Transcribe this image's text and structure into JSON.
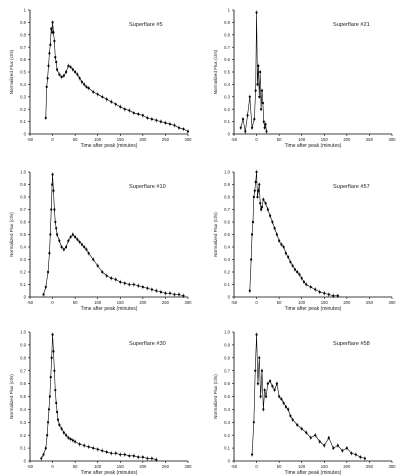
{
  "colors": {
    "marker": "#000000",
    "axis": "#000000",
    "gridless": "none"
  },
  "chart_data": [
    {
      "type": "scatter",
      "title": "Superflare #5",
      "xlabel": "Time after peak (minutes)",
      "ylabel": "Normalized Flux (ct/s)",
      "xlim": [
        -50,
        300
      ],
      "ylim": [
        0,
        1.0
      ],
      "xticks": [
        -50,
        0,
        50,
        100,
        150,
        200,
        250,
        300
      ],
      "yticks": [
        0,
        0.1,
        0.2,
        0.3,
        0.4,
        0.5,
        0.6,
        0.7,
        0.8,
        0.9,
        1
      ],
      "xtick_labels": [
        "-50",
        "0",
        "50",
        "100",
        "150",
        "200",
        "250",
        "300"
      ],
      "ytick_labels": [
        "0",
        "0.1",
        "0.2",
        "0.3",
        "0.4",
        "0.5",
        "0.6",
        "0.7",
        "0.8",
        "0.9",
        "1"
      ],
      "grid": false,
      "x": [
        -15,
        -13,
        -11,
        -9,
        -7,
        -5,
        -3,
        -1,
        0,
        2,
        4,
        6,
        8,
        10,
        15,
        20,
        25,
        30,
        35,
        40,
        45,
        50,
        55,
        60,
        65,
        70,
        75,
        80,
        90,
        100,
        110,
        120,
        130,
        140,
        150,
        160,
        170,
        180,
        190,
        200,
        210,
        220,
        230,
        240,
        250,
        260,
        270,
        280,
        290,
        300
      ],
      "y": [
        0.13,
        0.38,
        0.45,
        0.55,
        0.65,
        0.72,
        0.85,
        0.82,
        0.9,
        0.82,
        0.75,
        0.62,
        0.58,
        0.52,
        0.48,
        0.46,
        0.47,
        0.5,
        0.55,
        0.54,
        0.52,
        0.5,
        0.48,
        0.45,
        0.42,
        0.4,
        0.38,
        0.37,
        0.34,
        0.32,
        0.3,
        0.28,
        0.26,
        0.24,
        0.22,
        0.2,
        0.19,
        0.17,
        0.16,
        0.15,
        0.13,
        0.12,
        0.11,
        0.1,
        0.09,
        0.08,
        0.07,
        0.05,
        0.04,
        0.02
      ]
    },
    {
      "type": "scatter",
      "title": "Superflare #21",
      "xlabel": "Time after peak (minutes)",
      "ylabel": "Normalized Flux (ct/s)",
      "xlim": [
        -50,
        300
      ],
      "ylim": [
        0,
        1.0
      ],
      "xticks": [
        -50,
        0,
        50,
        100,
        150,
        200,
        250,
        300
      ],
      "yticks": [
        0,
        0.1,
        0.2,
        0.3,
        0.4,
        0.5,
        0.6,
        0.7,
        0.8,
        0.9,
        1
      ],
      "xtick_labels": [
        "-50",
        "0",
        "50",
        "100",
        "150",
        "200",
        "250",
        "300"
      ],
      "ytick_labels": [
        "0",
        "0.1",
        "0.2",
        "0.3",
        "0.4",
        "0.5",
        "0.6",
        "0.7",
        "0.8",
        "0.9",
        "1"
      ],
      "grid": false,
      "x": [
        -35,
        -30,
        -25,
        -20,
        -15,
        -10,
        -5,
        -2,
        0,
        2,
        4,
        6,
        8,
        10,
        12,
        14,
        16,
        18,
        20,
        22
      ],
      "y": [
        0.05,
        0.12,
        0.02,
        0.15,
        0.3,
        0.05,
        0.12,
        0.35,
        0.98,
        0.4,
        0.55,
        0.3,
        0.5,
        0.2,
        0.35,
        0.25,
        0.1,
        0.05,
        0.08,
        0.02
      ]
    },
    {
      "type": "scatter",
      "title": "Superflare #10",
      "xlabel": "Time after peak (minutes)",
      "ylabel": "Normalized Flux (ct/s)",
      "xlim": [
        -50,
        300
      ],
      "ylim": [
        0,
        1.0
      ],
      "xticks": [
        -50,
        0,
        50,
        100,
        150,
        200,
        250,
        300
      ],
      "yticks": [
        0,
        0.1,
        0.2,
        0.3,
        0.4,
        0.5,
        0.6,
        0.7,
        0.8,
        0.9,
        1
      ],
      "xtick_labels": [
        "-50",
        "0",
        "50",
        "100",
        "150",
        "200",
        "250",
        "300"
      ],
      "ytick_labels": [
        "0",
        "0.1",
        "0.2",
        "0.3",
        "0.4",
        "0.5",
        "0.6",
        "0.7",
        "0.8",
        "0.9",
        "1.0"
      ],
      "grid": false,
      "x": [
        -20,
        -15,
        -10,
        -7,
        -5,
        -3,
        -1,
        0,
        2,
        4,
        6,
        8,
        10,
        15,
        20,
        25,
        30,
        35,
        40,
        45,
        50,
        55,
        60,
        65,
        70,
        75,
        80,
        90,
        100,
        110,
        120,
        130,
        140,
        150,
        160,
        170,
        180,
        190,
        200,
        210,
        220,
        230,
        240,
        250,
        260,
        270,
        280,
        290
      ],
      "y": [
        0.02,
        0.08,
        0.2,
        0.35,
        0.5,
        0.7,
        0.9,
        0.98,
        0.85,
        0.7,
        0.6,
        0.55,
        0.5,
        0.45,
        0.4,
        0.38,
        0.4,
        0.45,
        0.48,
        0.5,
        0.48,
        0.46,
        0.44,
        0.42,
        0.4,
        0.38,
        0.35,
        0.3,
        0.25,
        0.2,
        0.17,
        0.15,
        0.14,
        0.12,
        0.11,
        0.1,
        0.1,
        0.09,
        0.08,
        0.07,
        0.06,
        0.05,
        0.04,
        0.03,
        0.03,
        0.02,
        0.02,
        0.01
      ]
    },
    {
      "type": "scatter",
      "title": "Superflare #57",
      "xlabel": "Time after peak (minutes)",
      "ylabel": "Normalized Flux (ct/s)",
      "xlim": [
        -50,
        300
      ],
      "ylim": [
        0,
        1.0
      ],
      "xticks": [
        -50,
        0,
        50,
        100,
        150,
        200,
        250,
        300
      ],
      "yticks": [
        0,
        0.1,
        0.2,
        0.3,
        0.4,
        0.5,
        0.6,
        0.7,
        0.8,
        0.9,
        1
      ],
      "xtick_labels": [
        "-50",
        "0",
        "50",
        "100",
        "150",
        "200",
        "250",
        "300"
      ],
      "ytick_labels": [
        "0",
        "0.1",
        "0.2",
        "0.3",
        "0.4",
        "0.5",
        "0.6",
        "0.7",
        "0.8",
        "0.9",
        "1.0"
      ],
      "grid": false,
      "x": [
        -15,
        -12,
        -10,
        -8,
        -6,
        -4,
        -2,
        0,
        2,
        4,
        6,
        8,
        10,
        12,
        15,
        20,
        25,
        30,
        35,
        40,
        45,
        50,
        55,
        60,
        65,
        70,
        75,
        80,
        85,
        90,
        95,
        100,
        105,
        110,
        120,
        130,
        140,
        150,
        160,
        170,
        180
      ],
      "y": [
        0.05,
        0.3,
        0.5,
        0.6,
        0.8,
        0.85,
        0.92,
        1.0,
        0.8,
        0.85,
        0.9,
        0.75,
        0.7,
        0.72,
        0.78,
        0.75,
        0.7,
        0.65,
        0.6,
        0.55,
        0.5,
        0.45,
        0.42,
        0.4,
        0.35,
        0.32,
        0.28,
        0.25,
        0.22,
        0.2,
        0.18,
        0.15,
        0.12,
        0.1,
        0.08,
        0.06,
        0.04,
        0.03,
        0.02,
        0.01,
        0.01
      ]
    },
    {
      "type": "scatter",
      "title": "Superflare #30",
      "xlabel": "Time after peak (minutes)",
      "ylabel": "Normalized Flux (ct/s)",
      "xlim": [
        -50,
        300
      ],
      "ylim": [
        0,
        1.0
      ],
      "xticks": [
        -50,
        0,
        50,
        100,
        150,
        200,
        250,
        300
      ],
      "yticks": [
        0,
        0.1,
        0.2,
        0.3,
        0.4,
        0.5,
        0.6,
        0.7,
        0.8,
        0.9,
        1
      ],
      "xtick_labels": [
        "-50",
        "0",
        "50",
        "100",
        "150",
        "200",
        "250",
        "300"
      ],
      "ytick_labels": [
        "0",
        "0.1",
        "0.2",
        "0.3",
        "0.4",
        "0.5",
        "0.6",
        "0.7",
        "0.8",
        "0.9",
        "1.0"
      ],
      "grid": false,
      "x": [
        -25,
        -20,
        -15,
        -12,
        -10,
        -8,
        -6,
        -4,
        -2,
        0,
        2,
        4,
        6,
        8,
        10,
        12,
        15,
        20,
        25,
        30,
        35,
        40,
        45,
        50,
        60,
        70,
        80,
        90,
        100,
        110,
        120,
        130,
        140,
        150,
        160,
        170,
        180,
        190,
        200,
        210,
        220,
        230
      ],
      "y": [
        0.02,
        0.05,
        0.1,
        0.2,
        0.3,
        0.4,
        0.5,
        0.65,
        0.8,
        0.98,
        0.85,
        0.7,
        0.55,
        0.45,
        0.38,
        0.32,
        0.28,
        0.25,
        0.22,
        0.2,
        0.18,
        0.17,
        0.16,
        0.15,
        0.13,
        0.12,
        0.11,
        0.1,
        0.09,
        0.08,
        0.07,
        0.06,
        0.06,
        0.05,
        0.05,
        0.04,
        0.04,
        0.03,
        0.03,
        0.02,
        0.02,
        0.01
      ]
    },
    {
      "type": "scatter",
      "title": "Superflare #58",
      "xlabel": "Time after peak (minutes)",
      "ylabel": "Normalized Flux (ct/s)",
      "xlim": [
        -50,
        300
      ],
      "ylim": [
        0,
        1.0
      ],
      "xticks": [
        -50,
        0,
        50,
        100,
        150,
        200,
        250,
        300
      ],
      "yticks": [
        0,
        0.1,
        0.2,
        0.3,
        0.4,
        0.5,
        0.6,
        0.7,
        0.8,
        0.9,
        1
      ],
      "xtick_labels": [
        "-50",
        "0",
        "50",
        "100",
        "150",
        "200",
        "250",
        "300"
      ],
      "ytick_labels": [
        "0",
        "0.1",
        "0.2",
        "0.3",
        "0.4",
        "0.5",
        "0.6",
        "0.7",
        "0.8",
        "0.9",
        "1.0"
      ],
      "grid": false,
      "x": [
        -10,
        -6,
        -3,
        0,
        3,
        6,
        9,
        12,
        15,
        18,
        21,
        25,
        30,
        35,
        40,
        45,
        50,
        55,
        60,
        65,
        70,
        75,
        80,
        90,
        100,
        110,
        120,
        130,
        140,
        150,
        160,
        170,
        180,
        190,
        200,
        210,
        220,
        230,
        240
      ],
      "y": [
        0.05,
        0.3,
        0.7,
        0.98,
        0.6,
        0.8,
        0.5,
        0.7,
        0.4,
        0.55,
        0.5,
        0.6,
        0.62,
        0.58,
        0.55,
        0.6,
        0.5,
        0.48,
        0.45,
        0.42,
        0.4,
        0.35,
        0.32,
        0.28,
        0.25,
        0.22,
        0.18,
        0.2,
        0.15,
        0.12,
        0.18,
        0.1,
        0.12,
        0.08,
        0.1,
        0.06,
        0.05,
        0.03,
        0.02
      ]
    }
  ]
}
